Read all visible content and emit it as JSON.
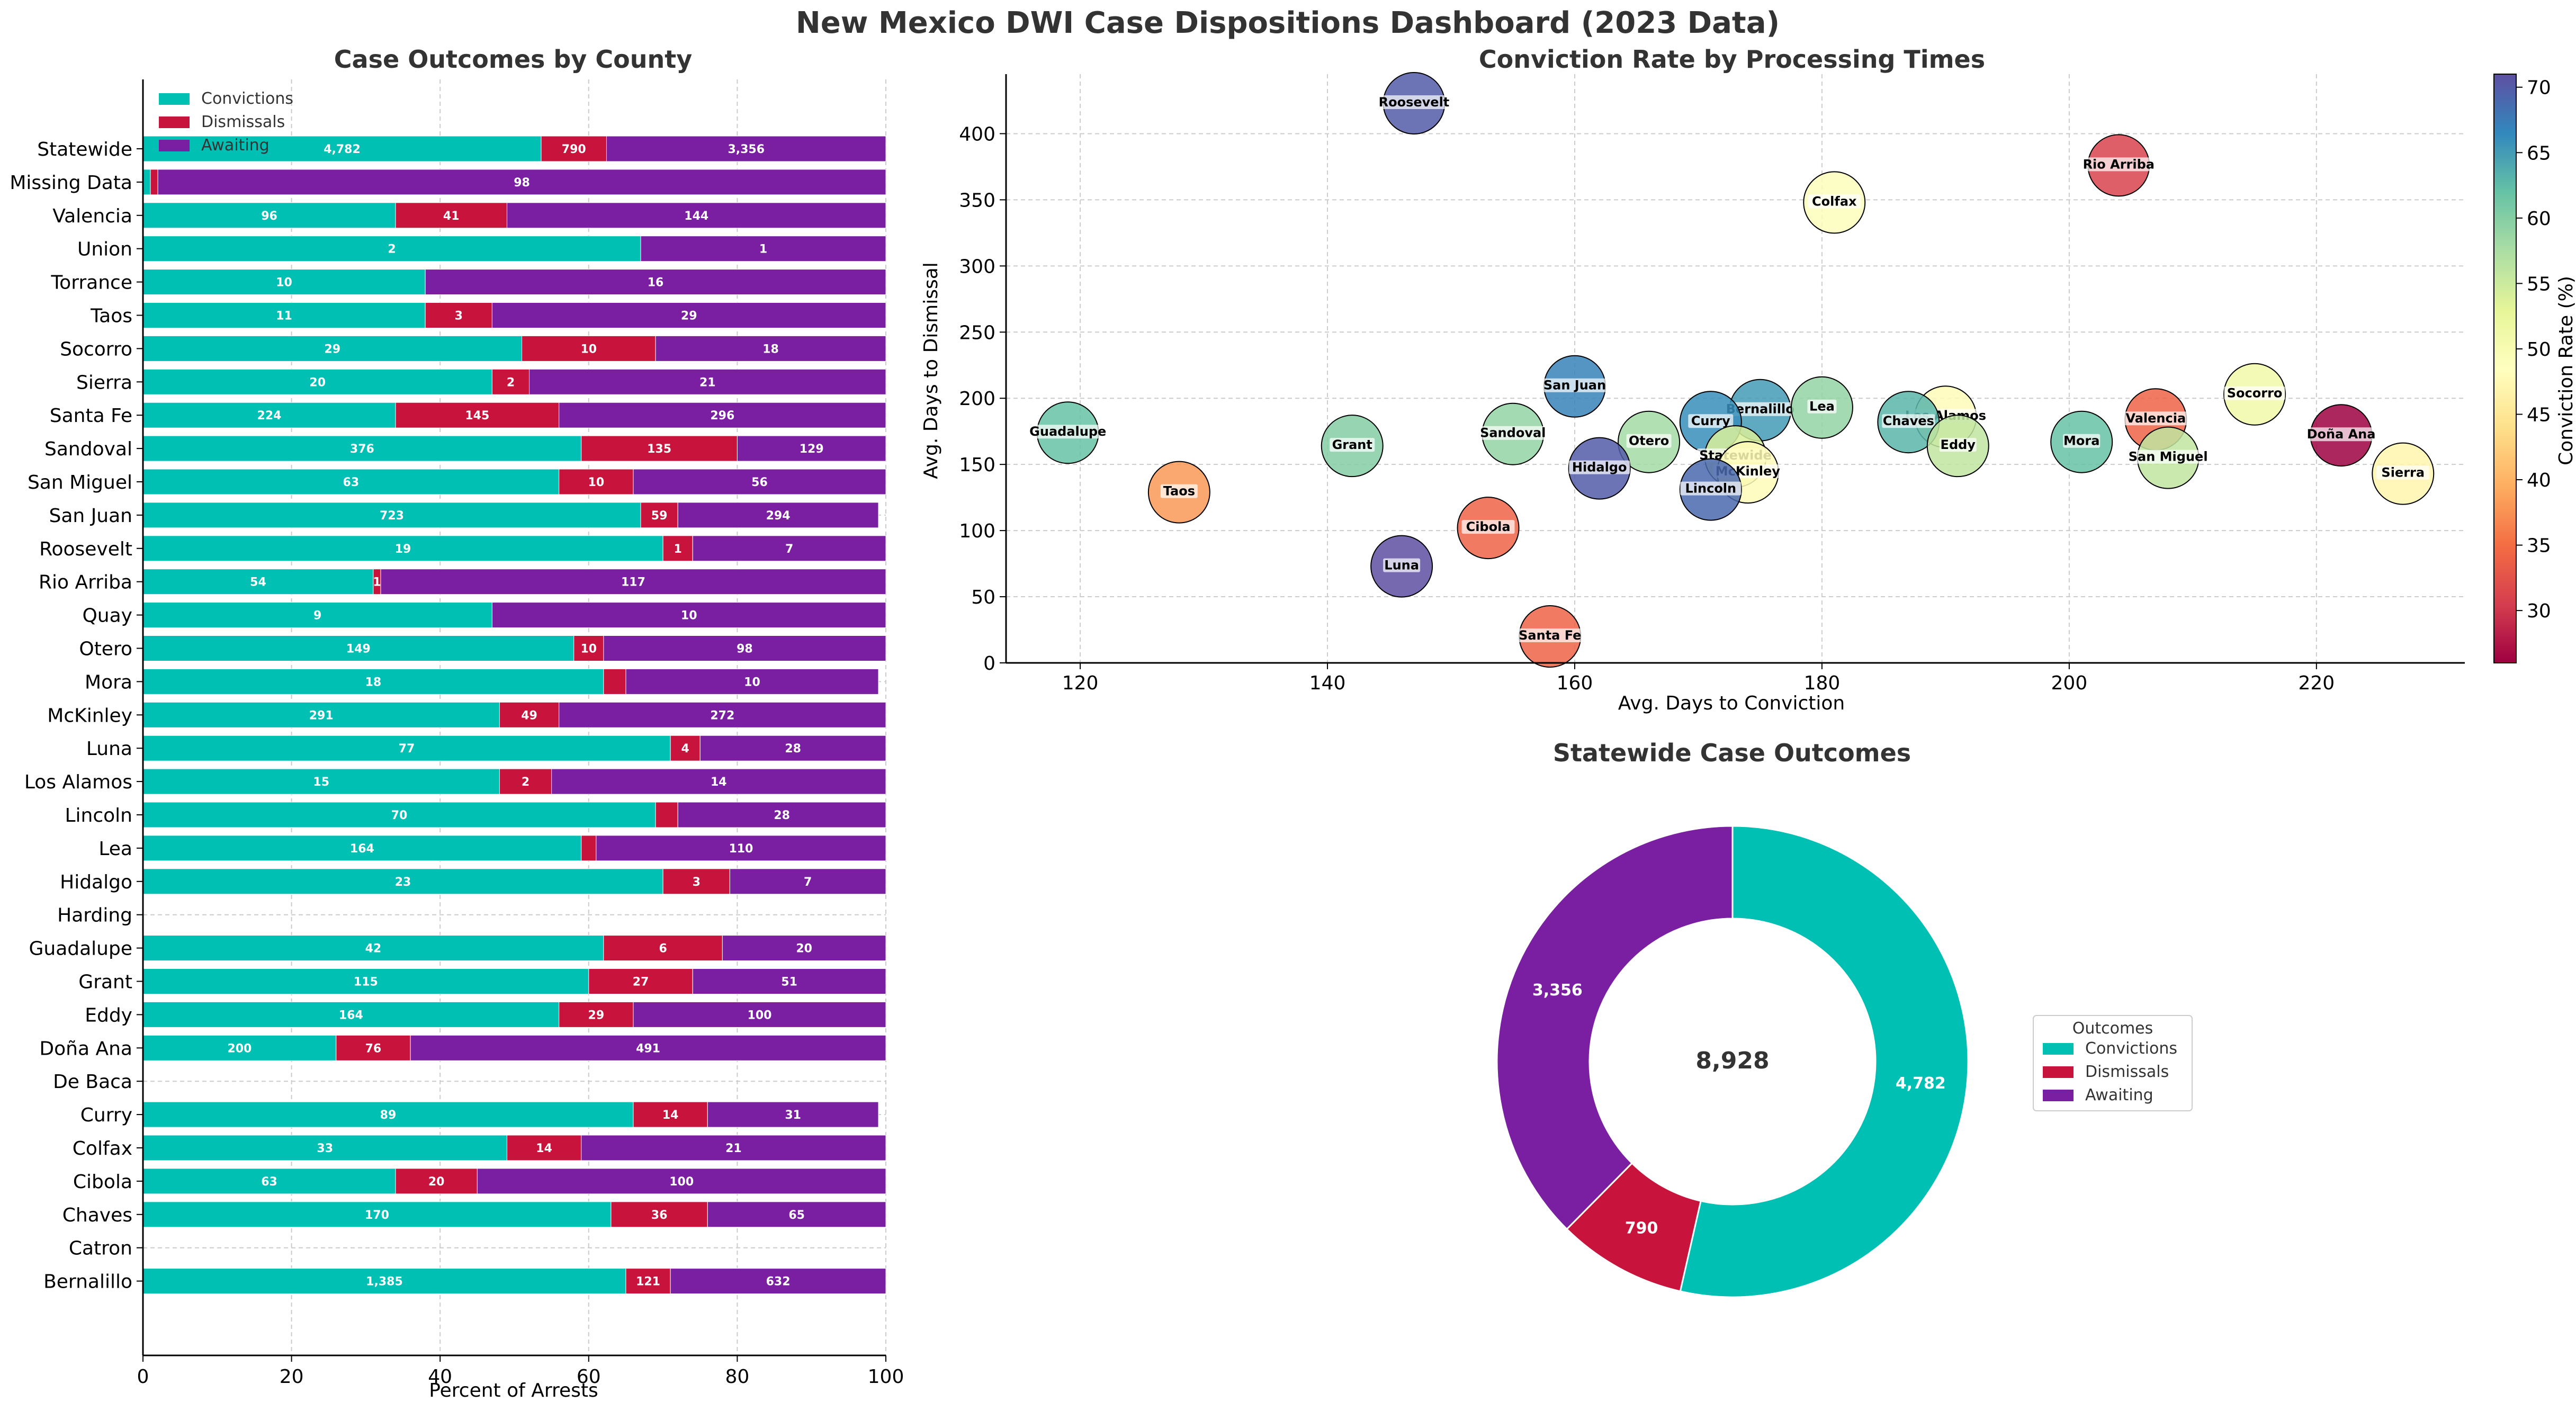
{
  "page": {
    "title": "New Mexico DWI Case Dispositions Dashboard (2023 Data)"
  },
  "colors": {
    "convictions": "#00BFB3",
    "dismissals": "#C8143C",
    "awaiting": "#7B1FA2",
    "grid": "#cccccc",
    "axis": "#000000",
    "text": "#333333"
  },
  "chart_data": [
    {
      "id": "county_outcomes",
      "type": "bar",
      "orientation": "horizontal",
      "stacked": true,
      "title": "Case Outcomes by County",
      "xlabel": "Percent of Arrests",
      "ylabel": "",
      "xlim": [
        0,
        100
      ],
      "xticks": [
        0,
        20,
        40,
        60,
        80,
        100
      ],
      "grid": true,
      "legend_position": "upper-left",
      "categories": [
        "Statewide",
        "Missing Data",
        "Valencia",
        "Union",
        "Torrance",
        "Taos",
        "Socorro",
        "Sierra",
        "Santa Fe",
        "Sandoval",
        "San Miguel",
        "San Juan",
        "Roosevelt",
        "Rio Arriba",
        "Quay",
        "Otero",
        "Mora",
        "McKinley",
        "Luna",
        "Los Alamos",
        "Lincoln",
        "Lea",
        "Hidalgo",
        "Harding",
        "Guadalupe",
        "Grant",
        "Eddy",
        "Doña Ana",
        "De Baca",
        "Curry",
        "Colfax",
        "Cibola",
        "Chaves",
        "Catron",
        "Bernalillo"
      ],
      "series": [
        {
          "name": "Convictions",
          "color_key": "convictions",
          "values": [
            53.6,
            1,
            34,
            67,
            38,
            38,
            51,
            47,
            34,
            59,
            56,
            67,
            70,
            31,
            47,
            58,
            62,
            48,
            71,
            48,
            69,
            59,
            70,
            null,
            62,
            60,
            56,
            26,
            null,
            66,
            49,
            34,
            63,
            null,
            65
          ],
          "labels": [
            "4,782",
            "",
            "96",
            "2",
            "10",
            "11",
            "29",
            "20",
            "224",
            "376",
            "63",
            "723",
            "19",
            "54",
            "9",
            "149",
            "18",
            "291",
            "77",
            "15",
            "70",
            "164",
            "23",
            "",
            "42",
            "115",
            "164",
            "200",
            "",
            "89",
            "33",
            "63",
            "170",
            "",
            "1,385"
          ]
        },
        {
          "name": "Dismissals",
          "color_key": "dismissals",
          "values": [
            8.8,
            1,
            15,
            0,
            0,
            9,
            18,
            5,
            22,
            21,
            10,
            5,
            4,
            1,
            0,
            4,
            3,
            8,
            4,
            7,
            3,
            2,
            9,
            null,
            16,
            14,
            10,
            10,
            null,
            10,
            10,
            11,
            13,
            null,
            6
          ],
          "labels": [
            "790",
            "",
            "41",
            "",
            "",
            "3",
            "10",
            "2",
            "145",
            "135",
            "10",
            "59",
            "1",
            "1",
            "",
            "10",
            "",
            "49",
            "4",
            "2",
            "",
            "",
            "3",
            "",
            "6",
            "27",
            "29",
            "76",
            "",
            "14",
            "14",
            "20",
            "36",
            "",
            "121"
          ]
        },
        {
          "name": "Awaiting",
          "color_key": "awaiting",
          "values": [
            37.6,
            98,
            51,
            33,
            62,
            53,
            31,
            48,
            44,
            20,
            34,
            27,
            26,
            68,
            53,
            38,
            34,
            44,
            25,
            45,
            28,
            39,
            21,
            null,
            22,
            26,
            34,
            64,
            null,
            23,
            41,
            55,
            24,
            null,
            29
          ],
          "labels": [
            "3,356",
            "98",
            "144",
            "1",
            "16",
            "29",
            "18",
            "21",
            "296",
            "129",
            "56",
            "294",
            "7",
            "117",
            "10",
            "98",
            "10",
            "272",
            "28",
            "14",
            "28",
            "110",
            "7",
            "",
            "20",
            "51",
            "100",
            "491",
            "",
            "31",
            "21",
            "100",
            "65",
            "",
            "632"
          ]
        }
      ]
    },
    {
      "id": "processing_times",
      "type": "scatter",
      "title": "Conviction Rate by Processing Times",
      "xlabel": "Avg. Days to Conviction",
      "ylabel": "Avg. Days to Dismissal",
      "xlim": [
        114,
        232
      ],
      "ylim": [
        0,
        445
      ],
      "xticks": [
        120,
        140,
        160,
        180,
        200,
        220
      ],
      "yticks": [
        0,
        50,
        100,
        150,
        200,
        250,
        300,
        350,
        400
      ],
      "grid": true,
      "colorbar": {
        "label": "Conviction Rate (%)",
        "min": 26,
        "max": 71,
        "ticks": [
          30,
          35,
          40,
          45,
          50,
          55,
          60,
          65,
          70
        ],
        "colormap": "Spectral"
      },
      "points": [
        {
          "label": "Roosevelt",
          "x": 147,
          "y": 423,
          "rate": 70
        },
        {
          "label": "Rio Arriba",
          "x": 204,
          "y": 376,
          "rate": 31
        },
        {
          "label": "Colfax",
          "x": 181,
          "y": 348,
          "rate": 49
        },
        {
          "label": "San Juan",
          "x": 160,
          "y": 209,
          "rate": 67
        },
        {
          "label": "Socorro",
          "x": 215,
          "y": 203,
          "rate": 51
        },
        {
          "label": "Bernalillo",
          "x": 175,
          "y": 191,
          "rate": 65
        },
        {
          "label": "Lea",
          "x": 180,
          "y": 193,
          "rate": 59
        },
        {
          "label": "Los Alamos",
          "x": 190,
          "y": 186,
          "rate": 48
        },
        {
          "label": "Valencia",
          "x": 207,
          "y": 184,
          "rate": 34
        },
        {
          "label": "Curry",
          "x": 171,
          "y": 182,
          "rate": 66
        },
        {
          "label": "Chaves",
          "x": 187,
          "y": 182,
          "rate": 63
        },
        {
          "label": "Guadalupe",
          "x": 119,
          "y": 174,
          "rate": 62
        },
        {
          "label": "Sandoval",
          "x": 155,
          "y": 173,
          "rate": 59
        },
        {
          "label": "Doña Ana",
          "x": 222,
          "y": 172,
          "rate": 26
        },
        {
          "label": "Otero",
          "x": 166,
          "y": 167,
          "rate": 58
        },
        {
          "label": "Mora",
          "x": 201,
          "y": 167,
          "rate": 62
        },
        {
          "label": "Grant",
          "x": 142,
          "y": 164,
          "rate": 60
        },
        {
          "label": "Eddy",
          "x": 191,
          "y": 164,
          "rate": 56
        },
        {
          "label": "Statewide",
          "x": 173,
          "y": 156,
          "rate": 54
        },
        {
          "label": "San Miguel",
          "x": 208,
          "y": 155,
          "rate": 56
        },
        {
          "label": "Hidalgo",
          "x": 162,
          "y": 147,
          "rate": 70
        },
        {
          "label": "McKinley",
          "x": 174,
          "y": 144,
          "rate": 48
        },
        {
          "label": "Sierra",
          "x": 227,
          "y": 143,
          "rate": 47
        },
        {
          "label": "Lincoln",
          "x": 171,
          "y": 131,
          "rate": 69
        },
        {
          "label": "Taos",
          "x": 128,
          "y": 129,
          "rate": 38
        },
        {
          "label": "Cibola",
          "x": 153,
          "y": 102,
          "rate": 34
        },
        {
          "label": "Luna",
          "x": 146,
          "y": 73,
          "rate": 71
        },
        {
          "label": "Santa Fe",
          "x": 158,
          "y": 20,
          "rate": 34
        }
      ]
    },
    {
      "id": "statewide_outcomes",
      "type": "pie",
      "donut": true,
      "title": "Statewide Case Outcomes",
      "center_label": "8,928",
      "legend_title": "Outcomes",
      "slices": [
        {
          "label": "Convictions",
          "value": 4782,
          "display": "4,782",
          "color_key": "convictions"
        },
        {
          "label": "Dismissals",
          "value": 790,
          "display": "790",
          "color_key": "dismissals"
        },
        {
          "label": "Awaiting",
          "value": 3356,
          "display": "3,356",
          "color_key": "awaiting"
        }
      ]
    }
  ]
}
